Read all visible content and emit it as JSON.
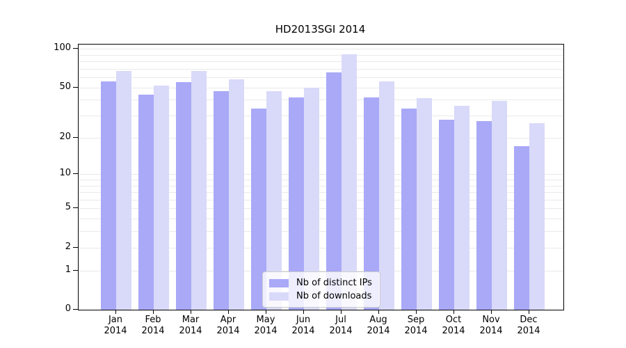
{
  "chart_data": {
    "type": "bar",
    "title": "HD2013SGI 2014",
    "categories": [
      "Jan",
      "Feb",
      "Mar",
      "Apr",
      "May",
      "Jun",
      "Jul",
      "Aug",
      "Sep",
      "Oct",
      "Nov",
      "Dec"
    ],
    "category_year": "2014",
    "series": [
      {
        "name": "Nb of distinct IPs",
        "color": "#a9a9f8",
        "values": [
          56,
          44,
          55,
          47,
          34,
          42,
          66,
          42,
          34,
          28,
          27,
          17
        ]
      },
      {
        "name": "Nb of downloads",
        "color": "#d9d9f9",
        "values": [
          67,
          52,
          67,
          58,
          47,
          50,
          91,
          56,
          41,
          36,
          39,
          26
        ]
      }
    ],
    "yscale": "log1p",
    "ylim": [
      0,
      108
    ],
    "yticks": [
      0,
      1,
      2,
      5,
      10,
      20,
      50,
      100
    ],
    "grid_values": [
      1,
      2,
      3,
      4,
      5,
      6,
      7,
      8,
      9,
      10,
      20,
      30,
      40,
      50,
      60,
      70,
      80,
      90,
      100
    ],
    "grid_color": "#e9e9e9",
    "axis_color": "#000000",
    "legend_position": "lower center"
  }
}
